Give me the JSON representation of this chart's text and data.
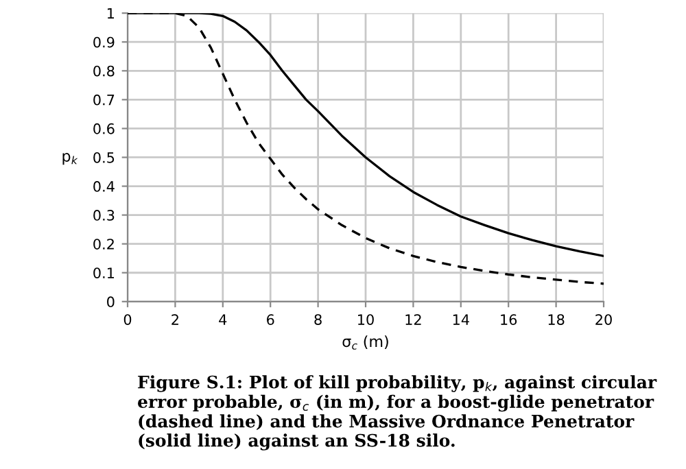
{
  "chart_data": {
    "type": "line",
    "xlabel": "σ$_{c}$ (m)",
    "ylabel": "p$_{k}$",
    "series": [
      {
        "color": "#000000",
        "line_style": "solid",
        "x": [
          0,
          2,
          3,
          3.5,
          4,
          4.5,
          5,
          5.5,
          6,
          6.5,
          7,
          7.5,
          8,
          9,
          10,
          11,
          12,
          13,
          14,
          15,
          16,
          17,
          18,
          19,
          20
        ],
        "values": [
          1,
          1,
          1,
          0.998,
          0.99,
          0.97,
          0.94,
          0.9,
          0.855,
          0.8,
          0.75,
          0.7,
          0.66,
          0.575,
          0.5,
          0.435,
          0.38,
          0.335,
          0.295,
          0.265,
          0.237,
          0.213,
          0.192,
          0.174,
          0.158
        ]
      },
      {
        "color": "#000000",
        "line_style": "dashed",
        "x": [
          0,
          2,
          2.5,
          3,
          3.5,
          4,
          4.5,
          5,
          5.5,
          6,
          6.5,
          7,
          7.5,
          8,
          9,
          10,
          11,
          12,
          13,
          14,
          15,
          16,
          17,
          18,
          19,
          20
        ],
        "values": [
          1,
          1,
          0.99,
          0.95,
          0.88,
          0.79,
          0.7,
          0.62,
          0.55,
          0.495,
          0.44,
          0.395,
          0.355,
          0.32,
          0.265,
          0.22,
          0.185,
          0.158,
          0.137,
          0.12,
          0.106,
          0.094,
          0.084,
          0.076,
          0.068,
          0.062
        ]
      }
    ],
    "xlim": [
      0,
      20
    ],
    "xticks": [
      0,
      2,
      4,
      6,
      8,
      10,
      12,
      14,
      16,
      18,
      20
    ],
    "ylim": [
      0,
      1
    ],
    "yticks": [
      0,
      0.1,
      0.2,
      0.3,
      0.4,
      0.5,
      0.6,
      0.7,
      0.8,
      0.9,
      1
    ],
    "grid": true,
    "marker": "none",
    "annotations": [
      "Figure S.1: Plot of kill probability, p$_{k}$, against circular error probable, σ$_{c}$ (in m), for a boost-glide penetrator (dashed line) and the Massive Ordnance Penetrator (solid line) against an SS-18 silo."
    ]
  }
}
